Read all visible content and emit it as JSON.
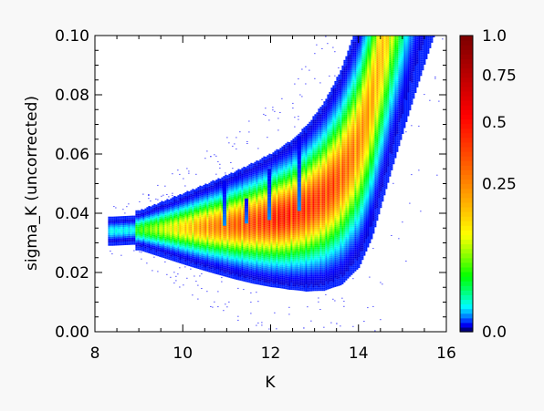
{
  "chart_data": {
    "type": "heatmap",
    "title": "",
    "xlabel": "K",
    "ylabel": "sigma_K (uncorrected)",
    "xlim": [
      8,
      16
    ],
    "ylim": [
      0.0,
      0.1
    ],
    "x_ticks": [
      8,
      10,
      12,
      14,
      16
    ],
    "x_tick_labels": [
      "8",
      "10",
      "12",
      "14",
      "16"
    ],
    "y_ticks": [
      0.0,
      0.02,
      0.04,
      0.06,
      0.08,
      0.1
    ],
    "y_tick_labels": [
      "0.00",
      "0.02",
      "0.04",
      "0.06",
      "0.08",
      "0.10"
    ],
    "ridge": {
      "description_values": "sigma_K along the density ridge vs K",
      "K": [
        8.4,
        8.8,
        9.2,
        9.6,
        10.0,
        10.4,
        10.8,
        11.2,
        11.6,
        12.0,
        12.4,
        12.8,
        13.2,
        13.6,
        14.0,
        14.3,
        14.6
      ],
      "sigma": [
        0.034,
        0.0343,
        0.0345,
        0.0347,
        0.0349,
        0.0352,
        0.0356,
        0.0361,
        0.0368,
        0.0378,
        0.0393,
        0.0417,
        0.0458,
        0.0525,
        0.064,
        0.079,
        0.1
      ]
    },
    "spikes": [
      {
        "K": 10.95,
        "sigma_top": 0.051
      },
      {
        "K": 11.45,
        "sigma_top": 0.045
      },
      {
        "K": 11.97,
        "sigma_top": 0.055
      },
      {
        "K": 12.65,
        "sigma_top": 0.066
      }
    ],
    "colorbar": {
      "range": [
        0.0,
        1.0
      ],
      "tick_labels": [
        "1.0",
        "0.75",
        "0.5",
        "0.25",
        "0.0"
      ],
      "tick_values": [
        1.0,
        0.75,
        0.5,
        0.25,
        0.0
      ],
      "colors": [
        "#000080",
        "#0000ff",
        "#00ffff",
        "#00ff00",
        "#ffff00",
        "#ff8000",
        "#ff0000",
        "#800000"
      ]
    },
    "grid": false,
    "background": "#f8f8f8",
    "scatter_color": "#0000ff"
  }
}
